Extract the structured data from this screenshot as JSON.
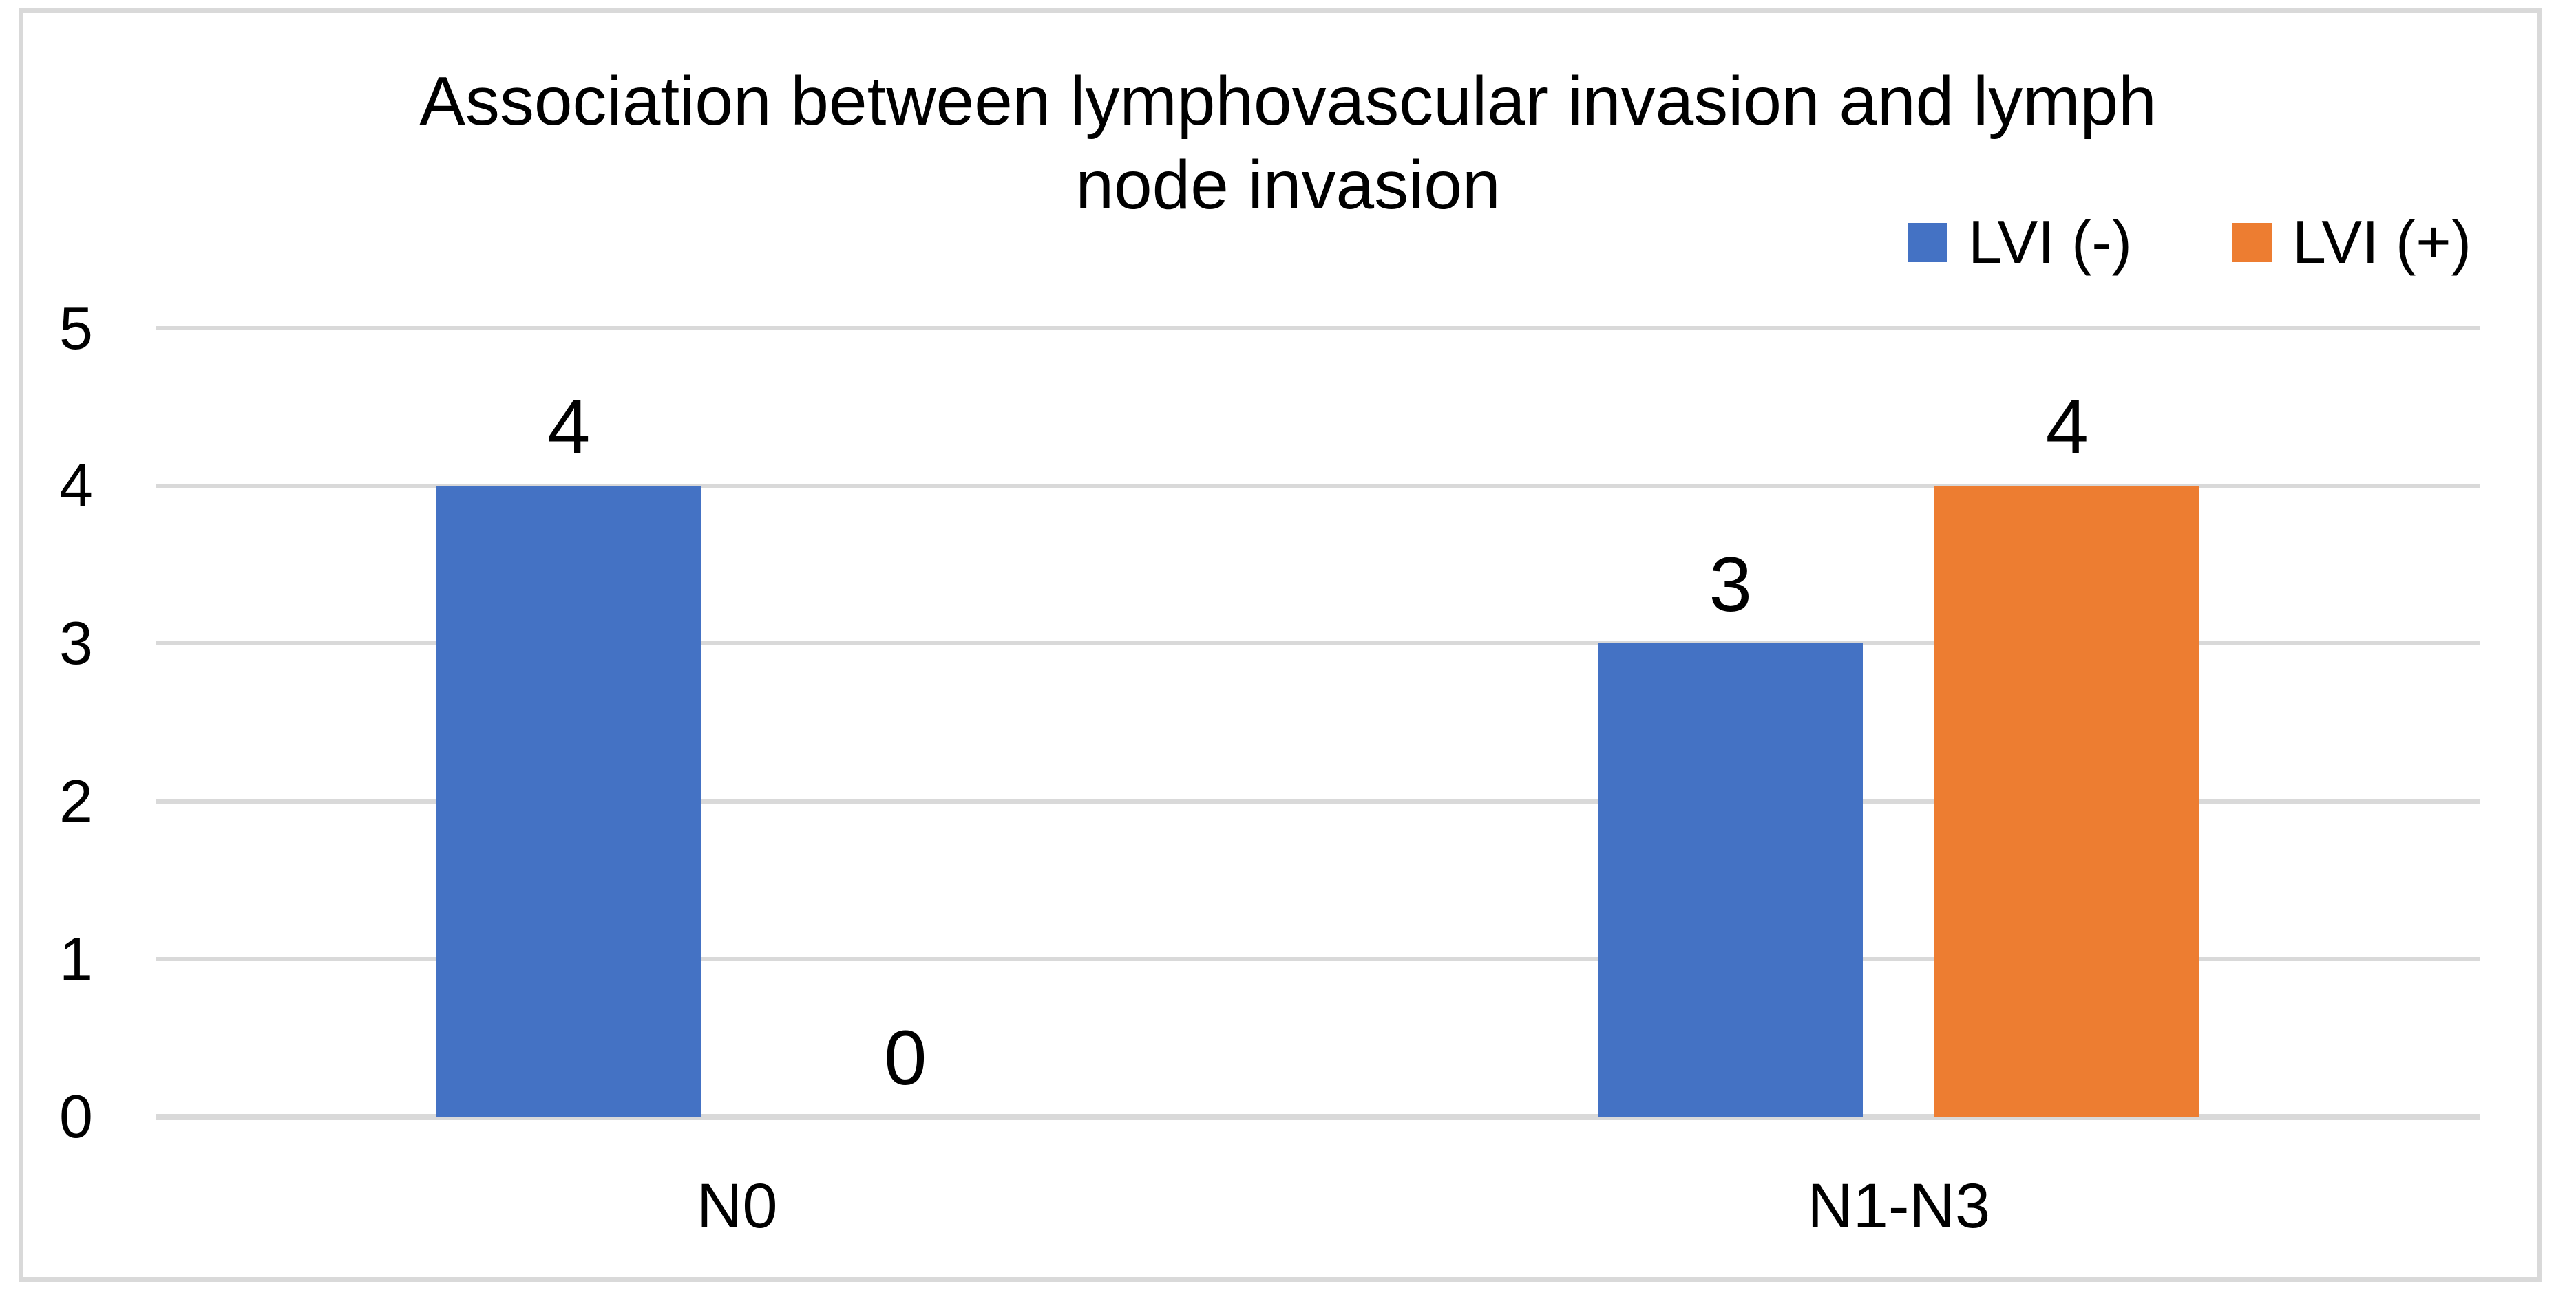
{
  "chart": {
    "title": "Association between lymphovascular invasion and lymph node invasion",
    "title_lines": [
      "Association between lymphovascular invasion and lymph",
      "node invasion"
    ],
    "background_color": "#FFFFFF",
    "frame_border_color": "#D9D9D9",
    "gridline_color": "#D9D9D9",
    "text_color": "#000000"
  },
  "legend": {
    "items": [
      {
        "label": "LVI (-)",
        "color": "#4472C4"
      },
      {
        "label": "LVI (+)",
        "color": "#ED7D31"
      }
    ]
  },
  "chart_data": {
    "type": "bar",
    "title": "Association between lymphovascular invasion and lymph node invasion",
    "categories": [
      "N0",
      "N1-N3"
    ],
    "series": [
      {
        "name": "LVI (-)",
        "color": "#4472C4",
        "values": [
          4,
          3
        ]
      },
      {
        "name": "LVI (+)",
        "color": "#ED7D31",
        "values": [
          0,
          4
        ]
      }
    ],
    "xlabel": "",
    "ylabel": "",
    "ylim": [
      0,
      5
    ],
    "y_ticks": [
      0,
      1,
      2,
      3,
      4,
      5
    ],
    "grid": true,
    "data_labels": true,
    "legend_position": "top-right"
  }
}
